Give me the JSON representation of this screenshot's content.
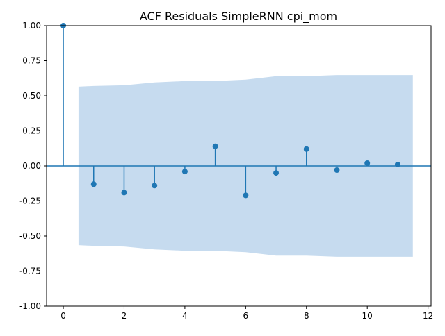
{
  "chart_data": {
    "type": "stem",
    "title": "ACF Residuals SimpleRNN cpi_mom",
    "xlabel": "",
    "ylabel": "",
    "xlim": [
      -0.55,
      12.1
    ],
    "ylim": [
      -1.0,
      1.0
    ],
    "xticks": [
      "0",
      "2",
      "4",
      "6",
      "8",
      "10",
      "12"
    ],
    "yticks": [
      "-1.00",
      "-0.75",
      "-0.50",
      "-0.25",
      "0.00",
      "0.25",
      "0.50",
      "0.75",
      "1.00"
    ],
    "grid": false,
    "legend": "none",
    "series": [
      {
        "x": [
          0,
          1,
          2,
          3,
          4,
          5,
          6,
          7,
          8,
          9,
          10,
          11
        ],
        "values": [
          1.0,
          -0.13,
          -0.19,
          -0.14,
          -0.04,
          0.14,
          -0.21,
          -0.05,
          0.12,
          -0.03,
          0.02,
          0.01
        ]
      }
    ],
    "confidence_band": {
      "x": [
        0.5,
        1,
        2,
        3,
        4,
        5,
        6,
        7,
        8,
        9,
        10,
        11,
        11.5
      ],
      "upper": [
        0.565,
        0.57,
        0.575,
        0.595,
        0.605,
        0.605,
        0.615,
        0.64,
        0.64,
        0.648,
        0.648,
        0.648,
        0.648
      ]
    },
    "colors": {
      "stem": "#1f77b4",
      "band": "#c6dbef",
      "axis": "#000000"
    }
  }
}
